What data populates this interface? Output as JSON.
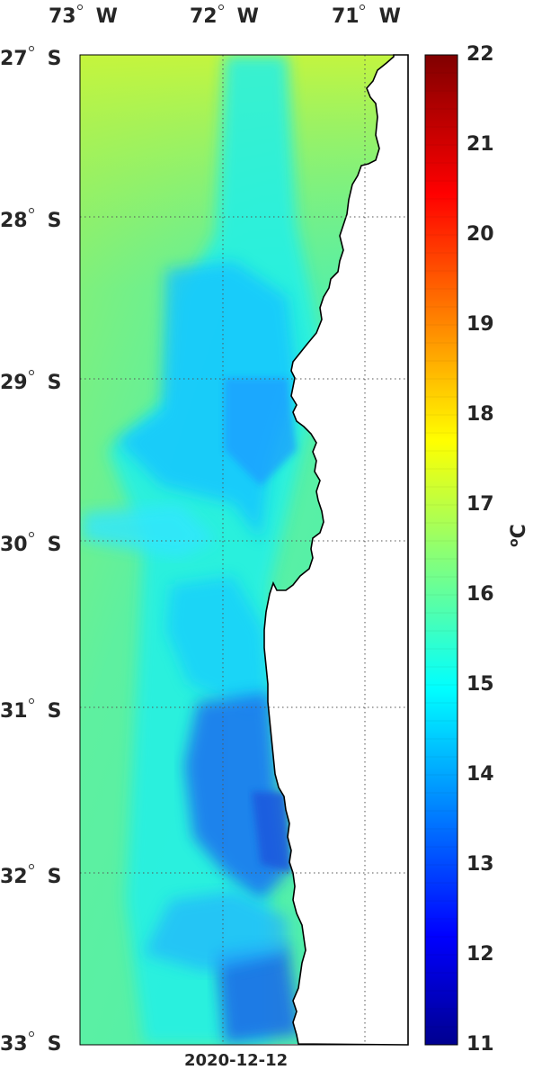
{
  "map": {
    "lon_labels": [
      "73",
      "72",
      "71"
    ],
    "lon_hemisphere": "W",
    "lat_labels": [
      "27",
      "28",
      "29",
      "30",
      "31",
      "32",
      "33"
    ],
    "lat_hemisphere": "S",
    "date": "2020-12-12"
  },
  "colorbar": {
    "ticks": [
      "22",
      "21",
      "20",
      "19",
      "18",
      "17",
      "16",
      "15",
      "14",
      "13",
      "12",
      "11"
    ],
    "unit_symbol": "C",
    "colormap": "jet",
    "range": [
      11,
      22
    ]
  },
  "colors": {
    "land": "#ffffff",
    "coastline": "#000000",
    "grid": "#555555"
  }
}
